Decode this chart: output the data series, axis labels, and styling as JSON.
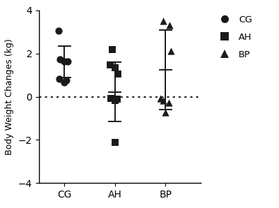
{
  "groups": [
    "CG",
    "AH",
    "BP"
  ],
  "cg_points_x": [
    -0.12,
    -0.08,
    0.0,
    0.06,
    -0.1,
    0.04,
    0.0
  ],
  "cg_points_y": [
    3.05,
    1.72,
    1.65,
    1.62,
    0.82,
    0.75,
    0.65
  ],
  "ah_points_x": [
    -0.05,
    -0.1,
    0.0,
    0.06,
    -0.08,
    0.05,
    0.0,
    0.0
  ],
  "ah_points_y": [
    2.18,
    1.48,
    1.35,
    1.05,
    -0.08,
    -0.12,
    -0.18,
    -2.12
  ],
  "bp_points_x": [
    -0.05,
    0.08,
    0.1,
    -0.1,
    -0.04,
    0.06,
    0.0
  ],
  "bp_points_y": [
    3.52,
    3.32,
    2.12,
    -0.08,
    -0.18,
    -0.28,
    -0.72
  ],
  "cg_mean": 1.62,
  "cg_sd": 0.72,
  "ah_mean": 0.22,
  "ah_sd": 1.38,
  "bp_mean": 1.25,
  "bp_sd": 1.85,
  "ylim": [
    -4,
    4
  ],
  "yticks": [
    -4,
    -2,
    0,
    2,
    4
  ],
  "ylabel": "Body Weight Changes (kg)",
  "marker_color": "#1a1a1a",
  "marker_size": 55,
  "background_color": "#ffffff",
  "error_lw": 1.4,
  "mean_hw": 0.13,
  "legend_labels": [
    "CG",
    "AH",
    "BP"
  ]
}
